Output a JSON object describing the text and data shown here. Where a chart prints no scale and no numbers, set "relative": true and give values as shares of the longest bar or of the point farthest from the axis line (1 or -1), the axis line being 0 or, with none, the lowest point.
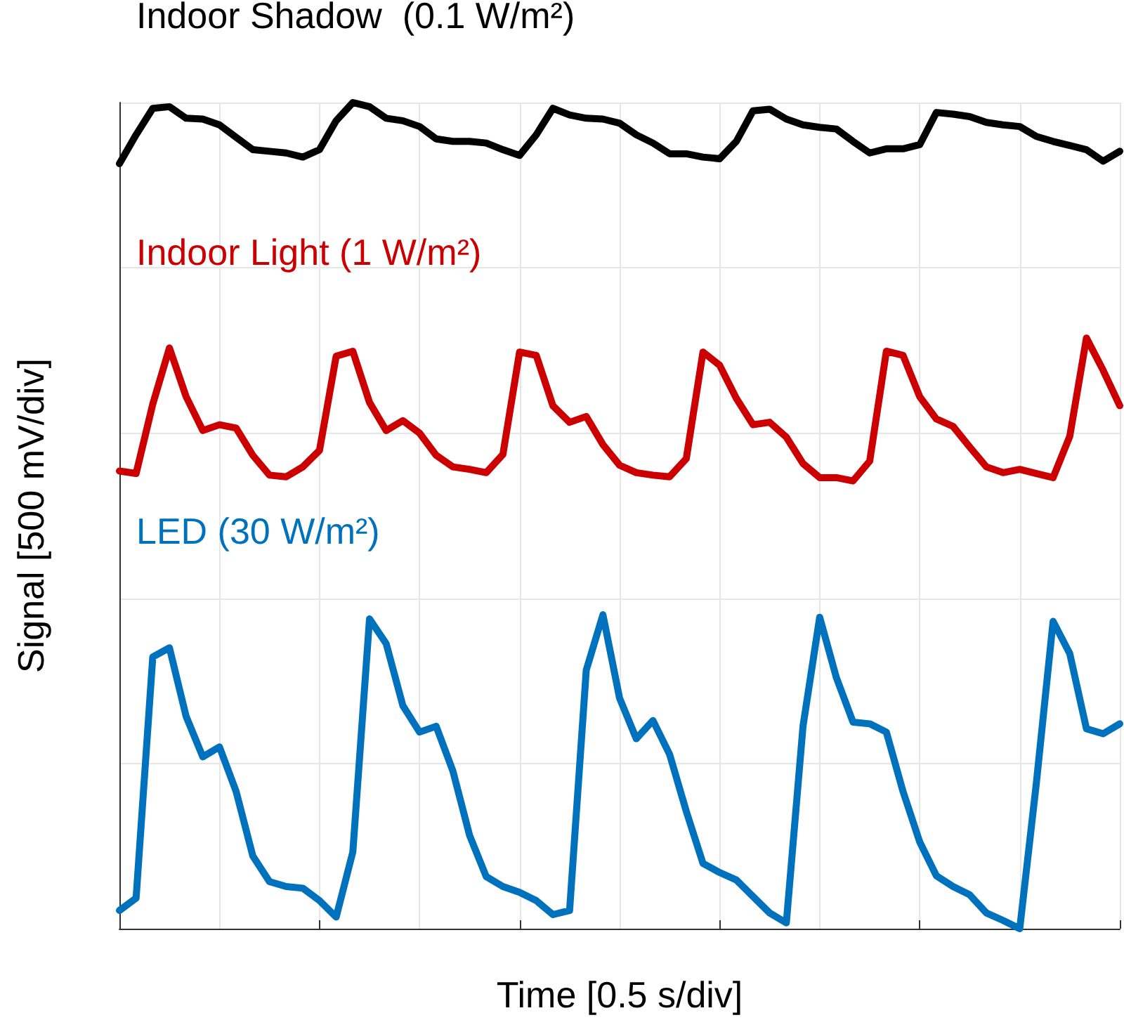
{
  "chart_data": {
    "type": "line",
    "xlabel": "Time [0.5 s/div]",
    "ylabel": "Signal [500 mV/div]",
    "relative": true,
    "grid": true,
    "legend": false,
    "marker": "none",
    "line_style": "solid",
    "categories": [
      null,
      null,
      null,
      null,
      null,
      null,
      null,
      null,
      null,
      null,
      null,
      null,
      null,
      null,
      null,
      null,
      null,
      null,
      null,
      null,
      null,
      null,
      null,
      null,
      null,
      null,
      null,
      null,
      null,
      null,
      null,
      null,
      null,
      null,
      null,
      null,
      null,
      null,
      null,
      null,
      null,
      null,
      null,
      null,
      null,
      null,
      null,
      null,
      null,
      null,
      null,
      null,
      null,
      null,
      null,
      null,
      null,
      null,
      null,
      null,
      null
    ],
    "series": [
      {
        "name": "Indoor Shadow  (0.1 W/m²)",
        "color": "#000000",
        "values": [
          0.926,
          0.961,
          0.993,
          0.995,
          0.981,
          0.98,
          0.973,
          0.958,
          0.943,
          0.941,
          0.939,
          0.934,
          0.943,
          0.978,
          1.0,
          0.995,
          0.981,
          0.978,
          0.971,
          0.956,
          0.953,
          0.953,
          0.951,
          0.943,
          0.936,
          0.961,
          0.993,
          0.985,
          0.981,
          0.98,
          0.975,
          0.961,
          0.951,
          0.938,
          0.938,
          0.934,
          0.932,
          0.953,
          0.99,
          0.992,
          0.98,
          0.973,
          0.97,
          0.968,
          0.953,
          0.939,
          0.944,
          0.944,
          0.949,
          0.988,
          0.986,
          0.983,
          0.976,
          0.973,
          0.971,
          0.959,
          0.953,
          0.948,
          0.943,
          0.929,
          0.941
        ]
      },
      {
        "name": "Indoor Light (1 W/m²)",
        "color": "#cc0000",
        "values": [
          0.554,
          0.551,
          0.635,
          0.703,
          0.644,
          0.603,
          0.61,
          0.606,
          0.573,
          0.549,
          0.547,
          0.559,
          0.579,
          0.693,
          0.699,
          0.637,
          0.603,
          0.615,
          0.6,
          0.573,
          0.559,
          0.556,
          0.552,
          0.574,
          0.698,
          0.694,
          0.633,
          0.613,
          0.62,
          0.586,
          0.561,
          0.552,
          0.549,
          0.547,
          0.569,
          0.698,
          0.682,
          0.642,
          0.61,
          0.613,
          0.595,
          0.563,
          0.546,
          0.546,
          0.542,
          0.566,
          0.699,
          0.694,
          0.644,
          0.617,
          0.608,
          0.583,
          0.559,
          0.552,
          0.556,
          0.551,
          0.546,
          0.596,
          0.715,
          0.676,
          0.633
        ]
      },
      {
        "name": "LED (30 W/m²)",
        "color": "#0072bd",
        "values": [
          0.022,
          0.037,
          0.329,
          0.34,
          0.257,
          0.208,
          0.22,
          0.166,
          0.088,
          0.057,
          0.051,
          0.049,
          0.034,
          0.014,
          0.093,
          0.375,
          0.345,
          0.27,
          0.238,
          0.245,
          0.191,
          0.113,
          0.063,
          0.051,
          0.044,
          0.034,
          0.017,
          0.022,
          0.313,
          0.38,
          0.279,
          0.23,
          0.252,
          0.211,
          0.142,
          0.079,
          0.068,
          0.059,
          0.039,
          0.019,
          0.007,
          0.245,
          0.377,
          0.304,
          0.25,
          0.248,
          0.238,
          0.166,
          0.105,
          0.064,
          0.051,
          0.041,
          0.019,
          0.01,
          0,
          0.177,
          0.372,
          0.333,
          0.242,
          0.236,
          0.248
        ]
      }
    ]
  }
}
